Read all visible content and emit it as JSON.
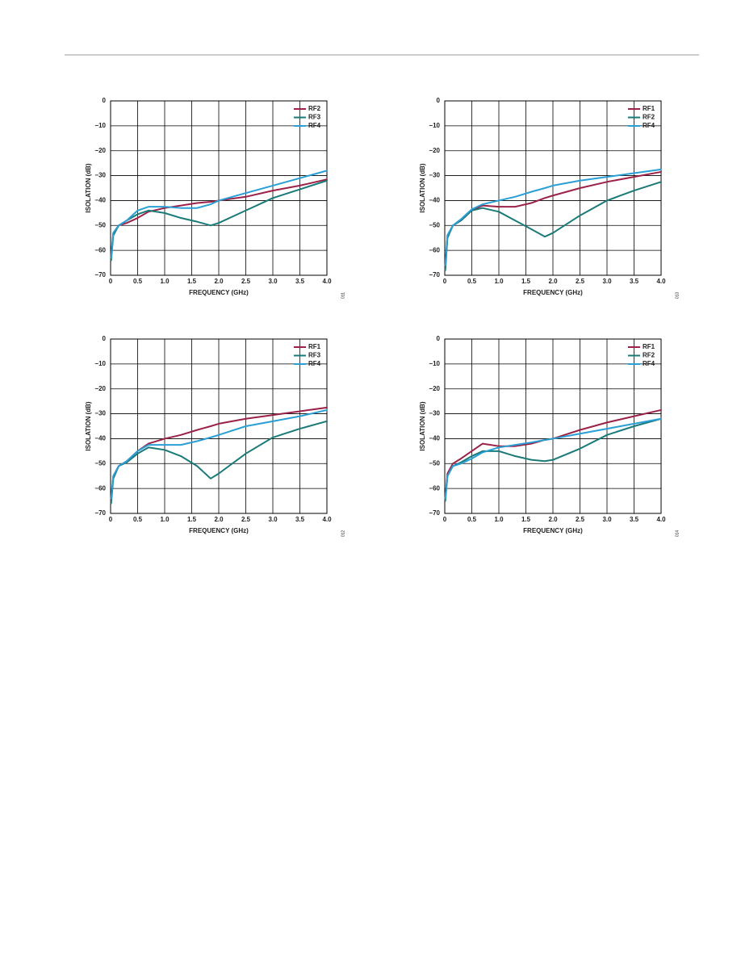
{
  "chart_data": [
    {
      "type": "line",
      "code": "011",
      "xlabel": "FREQUENCY (GHz)",
      "ylabel": "ISOLATION (dB)",
      "grid": true,
      "legend": "upper right",
      "xlim": [
        0,
        4
      ],
      "ylim": [
        -70,
        0
      ],
      "xticks": [
        0,
        0.5,
        {
          "value": 1,
          "label": "1.0"
        },
        1.5,
        {
          "value": 2,
          "label": "2.0"
        },
        2.5,
        {
          "value": 3,
          "label": "3.0"
        },
        3.5,
        {
          "value": 4,
          "label": "4.0"
        }
      ],
      "yticks": [
        0,
        {
          "value": -10,
          "label": "−10"
        },
        {
          "value": -20,
          "label": "−20"
        },
        {
          "value": -30,
          "label": "−30"
        },
        {
          "value": -40,
          "label": "−40"
        },
        {
          "value": -50,
          "label": "−50"
        },
        {
          "value": -60,
          "label": "−60"
        },
        {
          "value": -70,
          "label": "−70"
        }
      ],
      "x": [
        0.01,
        0.05,
        0.15,
        0.3,
        0.5,
        0.7,
        1.0,
        1.3,
        1.6,
        1.85,
        2.0,
        2.5,
        3.0,
        3.5,
        4.0
      ],
      "series": [
        {
          "name": "RF2",
          "color": "#9b2247",
          "values": [
            -62,
            -53,
            -50,
            -49,
            -47,
            -44.5,
            -43,
            -42,
            -41,
            -40.5,
            -40,
            -38.5,
            -36,
            -34,
            -31.5
          ]
        },
        {
          "name": "RF3",
          "color": "#1a7a78",
          "values": [
            -64,
            -54,
            -50,
            -48,
            -45.5,
            -44,
            -45,
            -47,
            -48.5,
            -50,
            -49,
            -44,
            -39,
            -35.5,
            -32
          ]
        },
        {
          "name": "RF4",
          "color": "#2a9fd6",
          "values": [
            -63,
            -53,
            -50,
            -48,
            -44,
            -42.5,
            -42.5,
            -43,
            -43,
            -41.5,
            -40,
            -37,
            -34,
            -31,
            -28
          ]
        }
      ]
    },
    {
      "type": "line",
      "code": "013",
      "xlabel": "FREQUENCY (GHz)",
      "ylabel": "ISOLATION (dB)",
      "grid": true,
      "legend": "upper right",
      "xlim": [
        0,
        4
      ],
      "ylim": [
        -70,
        0
      ],
      "xticks": [
        0,
        0.5,
        {
          "value": 1,
          "label": "1.0"
        },
        1.5,
        {
          "value": 2,
          "label": "2.0"
        },
        2.5,
        {
          "value": 3,
          "label": "3.0"
        },
        3.5,
        {
          "value": 4,
          "label": "4.0"
        }
      ],
      "yticks": [
        0,
        {
          "value": -10,
          "label": "−10"
        },
        {
          "value": -20,
          "label": "−20"
        },
        {
          "value": -30,
          "label": "−30"
        },
        {
          "value": -40,
          "label": "−40"
        },
        {
          "value": -50,
          "label": "−50"
        },
        {
          "value": -60,
          "label": "−60"
        },
        {
          "value": -70,
          "label": "−70"
        }
      ],
      "x": [
        0.01,
        0.05,
        0.15,
        0.3,
        0.5,
        0.7,
        1.0,
        1.3,
        1.6,
        1.85,
        2.0,
        2.5,
        3.0,
        3.5,
        4.0
      ],
      "series": [
        {
          "name": "RF1",
          "color": "#9b2247",
          "values": [
            -67,
            -54,
            -50,
            -48,
            -44,
            -42,
            -42.5,
            -42.5,
            -41,
            -39,
            -38,
            -35,
            -32.5,
            -30.5,
            -28.5
          ]
        },
        {
          "name": "RF2",
          "color": "#1a7a78",
          "values": [
            -68,
            -55,
            -50,
            -48,
            -44,
            -43,
            -44.5,
            -48,
            -51.5,
            -54.5,
            -53,
            -46,
            -40,
            -36,
            -32.5
          ]
        },
        {
          "name": "RF4",
          "color": "#2a9fd6",
          "values": [
            -66,
            -54,
            -50,
            -47.5,
            -43.5,
            -41.5,
            -40,
            -38.5,
            -36.5,
            -35,
            -34,
            -32,
            -30.5,
            -29,
            -27.5
          ]
        }
      ]
    },
    {
      "type": "line",
      "code": "012",
      "xlabel": "FREQUENCY (GHz)",
      "ylabel": "ISOLATION (dB)",
      "grid": true,
      "legend": "upper right",
      "xlim": [
        0,
        4
      ],
      "ylim": [
        -70,
        0
      ],
      "xticks": [
        0,
        0.5,
        {
          "value": 1,
          "label": "1.0"
        },
        1.5,
        {
          "value": 2,
          "label": "2.0"
        },
        2.5,
        {
          "value": 3,
          "label": "3.0"
        },
        3.5,
        {
          "value": 4,
          "label": "4.0"
        }
      ],
      "yticks": [
        0,
        {
          "value": -10,
          "label": "−10"
        },
        {
          "value": -20,
          "label": "−20"
        },
        {
          "value": -30,
          "label": "−30"
        },
        {
          "value": -40,
          "label": "−40"
        },
        {
          "value": -50,
          "label": "−50"
        },
        {
          "value": -60,
          "label": "−60"
        },
        {
          "value": -70,
          "label": "−70"
        }
      ],
      "x": [
        0.01,
        0.05,
        0.15,
        0.3,
        0.5,
        0.7,
        1.0,
        1.3,
        1.6,
        1.85,
        2.0,
        2.5,
        3.0,
        3.5,
        4.0
      ],
      "series": [
        {
          "name": "RF1",
          "color": "#9b2247",
          "values": [
            -65,
            -55,
            -51,
            -49,
            -45,
            -42,
            -40,
            -38.5,
            -36.5,
            -35,
            -34,
            -32,
            -30.5,
            -29,
            -27.5
          ]
        },
        {
          "name": "RF3",
          "color": "#1a7a78",
          "values": [
            -66,
            -56,
            -51,
            -49.5,
            -46,
            -43.5,
            -44.5,
            -47,
            -51,
            -56,
            -54,
            -46,
            -39.5,
            -36,
            -33
          ]
        },
        {
          "name": "RF4",
          "color": "#2a9fd6",
          "values": [
            -64,
            -55,
            -51,
            -49,
            -45,
            -42.5,
            -42.5,
            -42.5,
            -41,
            -39.5,
            -38.5,
            -35,
            -33,
            -31,
            -28.5
          ]
        }
      ]
    },
    {
      "type": "line",
      "code": "014",
      "xlabel": "FREQUENCY (GHz)",
      "ylabel": "ISOLATION (dB)",
      "grid": true,
      "legend": "upper right",
      "xlim": [
        0,
        4
      ],
      "ylim": [
        -70,
        0
      ],
      "xticks": [
        0,
        0.5,
        {
          "value": 1,
          "label": "1.0"
        },
        1.5,
        {
          "value": 2,
          "label": "2.0"
        },
        2.5,
        {
          "value": 3,
          "label": "3.0"
        },
        3.5,
        {
          "value": 4,
          "label": "4.0"
        }
      ],
      "yticks": [
        0,
        {
          "value": -10,
          "label": "−10"
        },
        {
          "value": -20,
          "label": "−20"
        },
        {
          "value": -30,
          "label": "−30"
        },
        {
          "value": -40,
          "label": "−40"
        },
        {
          "value": -50,
          "label": "−50"
        },
        {
          "value": -60,
          "label": "−60"
        },
        {
          "value": -70,
          "label": "−70"
        }
      ],
      "x": [
        0.01,
        0.05,
        0.15,
        0.3,
        0.5,
        0.7,
        1.0,
        1.3,
        1.6,
        1.85,
        2.0,
        2.5,
        3.0,
        3.5,
        4.0
      ],
      "series": [
        {
          "name": "RF1",
          "color": "#9b2247",
          "values": [
            -64,
            -54,
            -50,
            -48,
            -45,
            -42,
            -43,
            -43,
            -42,
            -40.5,
            -40,
            -36.5,
            -33.5,
            -31,
            -28.5
          ]
        },
        {
          "name": "RF2",
          "color": "#1a7a78",
          "values": [
            -65,
            -55,
            -51,
            -49.5,
            -47,
            -45,
            -45,
            -47,
            -48.5,
            -49,
            -48.5,
            -44,
            -38.5,
            -35,
            -32
          ]
        },
        {
          "name": "RF4",
          "color": "#2a9fd6",
          "values": [
            -64,
            -55,
            -51,
            -50,
            -48,
            -45.5,
            -43.5,
            -42.5,
            -41.5,
            -40.5,
            -40,
            -38,
            -36,
            -34,
            -32
          ]
        }
      ]
    }
  ]
}
